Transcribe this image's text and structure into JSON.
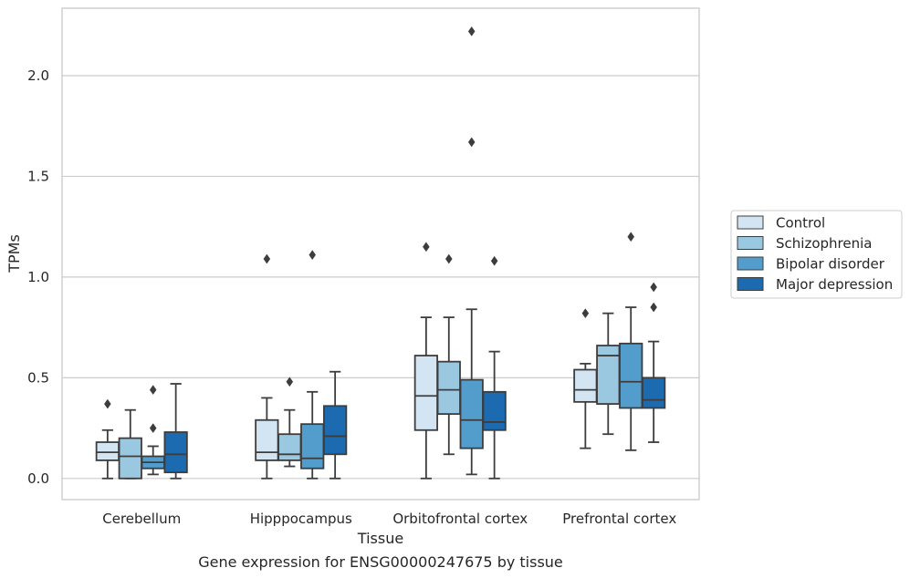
{
  "chart_data": {
    "type": "box",
    "title": "",
    "caption": "Gene expression for ENSG00000247675 by tissue",
    "xlabel": "Tissue",
    "ylabel": "TPMs",
    "ylim": [
      -0.105,
      2.335
    ],
    "yticks": [
      0.0,
      0.5,
      1.0,
      1.5,
      2.0
    ],
    "ytick_labels": [
      "0.0",
      "0.5",
      "1.0",
      "1.5",
      "2.0"
    ],
    "grid": "horizontal",
    "legend_position": "outside-right",
    "categories": [
      "Cerebellum",
      "Hipppocampus",
      "Orbitofrontal cortex",
      "Prefrontal cortex"
    ],
    "series": [
      {
        "name": "Control",
        "color": "#d3e4f3",
        "boxes": [
          {
            "whislo": 0.0,
            "q1": 0.09,
            "med": 0.13,
            "q3": 0.18,
            "whishi": 0.24,
            "fliers": [
              0.37
            ]
          },
          {
            "whislo": 0.0,
            "q1": 0.09,
            "med": 0.13,
            "q3": 0.29,
            "whishi": 0.4,
            "fliers": [
              1.09
            ]
          },
          {
            "whislo": 0.0,
            "q1": 0.24,
            "med": 0.41,
            "q3": 0.61,
            "whishi": 0.8,
            "fliers": [
              1.15
            ]
          },
          {
            "whislo": 0.15,
            "q1": 0.38,
            "med": 0.44,
            "q3": 0.54,
            "whishi": 0.57,
            "fliers": [
              0.82
            ]
          }
        ]
      },
      {
        "name": "Schizophrenia",
        "color": "#9ac8e0",
        "boxes": [
          {
            "whislo": 0.0,
            "q1": 0.0,
            "med": 0.11,
            "q3": 0.2,
            "whishi": 0.34,
            "fliers": []
          },
          {
            "whislo": 0.06,
            "q1": 0.09,
            "med": 0.12,
            "q3": 0.22,
            "whishi": 0.34,
            "fliers": [
              0.48
            ]
          },
          {
            "whislo": 0.12,
            "q1": 0.32,
            "med": 0.44,
            "q3": 0.58,
            "whishi": 0.8,
            "fliers": [
              1.09
            ]
          },
          {
            "whislo": 0.22,
            "q1": 0.37,
            "med": 0.61,
            "q3": 0.66,
            "whishi": 0.82,
            "fliers": []
          }
        ]
      },
      {
        "name": "Bipolar disorder",
        "color": "#529dcc",
        "boxes": [
          {
            "whislo": 0.02,
            "q1": 0.05,
            "med": 0.08,
            "q3": 0.11,
            "whishi": 0.16,
            "fliers": [
              0.25,
              0.44
            ]
          },
          {
            "whislo": 0.0,
            "q1": 0.05,
            "med": 0.1,
            "q3": 0.27,
            "whishi": 0.43,
            "fliers": [
              1.11
            ]
          },
          {
            "whislo": 0.02,
            "q1": 0.15,
            "med": 0.29,
            "q3": 0.49,
            "whishi": 0.84,
            "fliers": [
              1.67,
              2.22
            ]
          },
          {
            "whislo": 0.14,
            "q1": 0.35,
            "med": 0.48,
            "q3": 0.67,
            "whishi": 0.85,
            "fliers": [
              1.2
            ]
          }
        ]
      },
      {
        "name": "Major depression",
        "color": "#1c6aaf",
        "boxes": [
          {
            "whislo": 0.0,
            "q1": 0.03,
            "med": 0.12,
            "q3": 0.23,
            "whishi": 0.47,
            "fliers": []
          },
          {
            "whislo": 0.0,
            "q1": 0.12,
            "med": 0.21,
            "q3": 0.36,
            "whishi": 0.53,
            "fliers": []
          },
          {
            "whislo": 0.0,
            "q1": 0.24,
            "med": 0.28,
            "q3": 0.43,
            "whishi": 0.63,
            "fliers": [
              1.08
            ]
          },
          {
            "whislo": 0.18,
            "q1": 0.35,
            "med": 0.39,
            "q3": 0.5,
            "whishi": 0.68,
            "fliers": [
              0.85,
              0.95
            ]
          }
        ]
      }
    ]
  }
}
